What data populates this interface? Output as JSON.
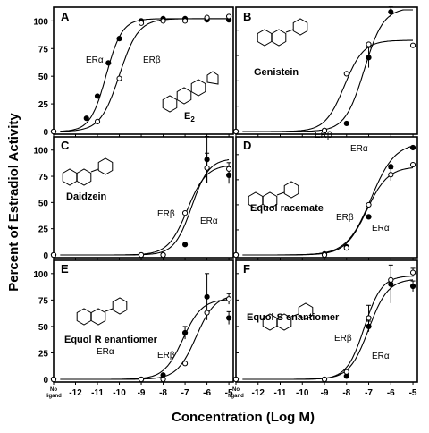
{
  "y_axis_label": "Percent of Estradiol Activity",
  "x_axis_label": "Concentration (Log M)",
  "no_ligand_label": [
    "No",
    "ligand"
  ],
  "x_tick_labels": [
    "-12",
    "-11",
    "-10",
    "-9",
    "-8",
    "-7",
    "-6",
    "-5"
  ],
  "colors": {
    "axis": "#000000",
    "er_alpha": "#000000",
    "er_beta": "#000000"
  },
  "chart_data": [
    {
      "type": "line",
      "panel": "A",
      "label": "E2",
      "xlim": [
        -12,
        -5
      ],
      "ylim": [
        0,
        110
      ],
      "yticks": [
        0,
        25,
        50,
        75,
        100
      ],
      "x_ticks": [
        -12,
        -11,
        -10,
        -9,
        -8,
        -7,
        -6,
        -5
      ],
      "ligand_image": "estradiol-structure",
      "series": [
        {
          "name": "ERα",
          "marker": "filled-circle",
          "x": [
            "no-ligand",
            -11.5,
            -11,
            -10.5,
            -10,
            -9,
            -8,
            -7,
            -6,
            -5
          ],
          "y": [
            0,
            12,
            32,
            62,
            84,
            100,
            102,
            102,
            101,
            101
          ],
          "ec50": -10.6,
          "top": 102,
          "hill": 1.2
        },
        {
          "name": "ERβ",
          "marker": "open-circle",
          "x": [
            "no-ligand",
            -11,
            -10,
            -9,
            -8,
            -7,
            -6,
            -5
          ],
          "y": [
            0,
            9,
            48,
            98,
            100,
            100,
            103,
            104
          ],
          "ec50": -10.0,
          "top": 102,
          "hill": 1.0
        }
      ]
    },
    {
      "type": "line",
      "panel": "B",
      "label": "Genistein",
      "xlim": [
        -12,
        -5
      ],
      "ylim": [
        0,
        120
      ],
      "yticks": [
        0,
        25,
        50,
        75,
        100
      ],
      "x_ticks": [
        -12,
        -11,
        -10,
        -9,
        -8,
        -7,
        -6,
        -5
      ],
      "ligand_image": "genistein-structure",
      "series": [
        {
          "name": "ERα",
          "marker": "filled-circle",
          "x": [
            "no-ligand",
            -9,
            -8,
            -7,
            -6
          ],
          "y": [
            0,
            1,
            8,
            73,
            118
          ],
          "error": [
            0,
            0,
            0,
            10,
            5
          ],
          "ec50": -7.2,
          "top": 122,
          "hill": 1.0
        },
        {
          "name": "ERβ",
          "marker": "open-circle",
          "x": [
            "no-ligand",
            -9,
            -8,
            -7,
            -5
          ],
          "y": [
            0,
            1,
            57,
            86,
            85
          ],
          "ec50": -8.1,
          "top": 90,
          "hill": 1.0
        }
      ]
    },
    {
      "type": "line",
      "panel": "C",
      "label": "Daidzein",
      "xlim": [
        -12,
        -5
      ],
      "ylim": [
        0,
        110
      ],
      "yticks": [
        0,
        25,
        50,
        75,
        100
      ],
      "x_ticks": [
        -12,
        -11,
        -10,
        -9,
        -8,
        -7,
        -6,
        -5
      ],
      "ligand_image": "daidzein-structure",
      "series": [
        {
          "name": "ERα",
          "marker": "filled-circle",
          "x": [
            "no-ligand",
            -9,
            -8,
            -7,
            -6,
            -5
          ],
          "y": [
            0,
            0,
            0,
            10,
            91,
            76
          ],
          "error": [
            0,
            0,
            0,
            0,
            22,
            8
          ],
          "ec50": -6.7,
          "top": 92,
          "hill": 1.1
        },
        {
          "name": "ERβ",
          "marker": "open-circle",
          "x": [
            "no-ligand",
            -9,
            -8,
            -7,
            -6,
            -5
          ],
          "y": [
            0,
            0,
            0,
            40,
            83,
            82
          ],
          "error": [
            0,
            0,
            0,
            0,
            14,
            6
          ],
          "ec50": -6.9,
          "top": 86,
          "hill": 1.0
        }
      ]
    },
    {
      "type": "line",
      "panel": "D",
      "label": "Equol racemate",
      "xlim": [
        -12,
        -5
      ],
      "ylim": [
        0,
        115
      ],
      "yticks": [
        0,
        25,
        50,
        75,
        100
      ],
      "x_ticks": [
        -12,
        -11,
        -10,
        -9,
        -8,
        -7,
        -6,
        -5
      ],
      "ligand_image": "equol-structure",
      "series": [
        {
          "name": "ERα",
          "marker": "filled-circle",
          "x": [
            "no-ligand",
            -9,
            -8,
            -7,
            -6,
            -5
          ],
          "y": [
            0,
            1,
            8,
            38,
            88,
            107
          ],
          "ec50": -6.9,
          "top": 112,
          "hill": 0.8
        },
        {
          "name": "ERβ",
          "marker": "open-circle",
          "x": [
            "no-ligand",
            -9,
            -8,
            -7,
            -6,
            -5
          ],
          "y": [
            0,
            0,
            7,
            50,
            80,
            90
          ],
          "error": [
            0,
            0,
            0,
            0,
            6,
            0
          ],
          "ec50": -7.1,
          "top": 88,
          "hill": 0.9
        }
      ]
    },
    {
      "type": "line",
      "panel": "E",
      "label": "Equol R enantiomer",
      "xlim": [
        -12,
        -5
      ],
      "ylim": [
        0,
        110
      ],
      "yticks": [
        0,
        25,
        50,
        75,
        100
      ],
      "x_ticks": [
        -12,
        -11,
        -10,
        -9,
        -8,
        -7,
        -6,
        -5
      ],
      "ligand_image": "equol-r-structure",
      "series": [
        {
          "name": "ERα",
          "marker": "filled-circle",
          "x": [
            "no-ligand",
            -9,
            -8,
            -7,
            -6,
            -5
          ],
          "y": [
            0,
            0,
            4,
            44,
            78,
            58
          ],
          "error": [
            0,
            0,
            0,
            6,
            22,
            6
          ],
          "ec50": -7.1,
          "top": 76,
          "hill": 1.0
        },
        {
          "name": "ERβ",
          "marker": "open-circle",
          "x": [
            "no-ligand",
            -9,
            -8,
            -7,
            -6,
            -5
          ],
          "y": [
            0,
            0,
            0,
            15,
            63,
            76
          ],
          "error": [
            0,
            0,
            0,
            0,
            0,
            5
          ],
          "ec50": -6.5,
          "top": 80,
          "hill": 1.0
        }
      ]
    },
    {
      "type": "line",
      "panel": "F",
      "label": "Equol S enantiomer",
      "xlim": [
        -12,
        -5
      ],
      "ylim": [
        0,
        110
      ],
      "yticks": [
        0,
        25,
        50,
        75,
        100
      ],
      "x_ticks": [
        -12,
        -11,
        -10,
        -9,
        -8,
        -7,
        -6,
        -5
      ],
      "ligand_image": "equol-s-structure",
      "series": [
        {
          "name": "ERα",
          "marker": "filled-circle",
          "x": [
            "no-ligand",
            -9,
            -8,
            -7,
            -6,
            -5
          ],
          "y": [
            0,
            0,
            3,
            50,
            90,
            88
          ],
          "error": [
            0,
            0,
            0,
            5,
            18,
            5
          ],
          "ec50": -7.0,
          "top": 95,
          "hill": 1.0
        },
        {
          "name": "ERβ",
          "marker": "open-circle",
          "x": [
            "no-ligand",
            -9,
            -8,
            -7,
            -6,
            -5
          ],
          "y": [
            0,
            0,
            7,
            58,
            94,
            101
          ],
          "error": [
            0,
            0,
            0,
            12,
            0,
            4
          ],
          "ec50": -7.2,
          "top": 98,
          "hill": 1.1
        }
      ]
    }
  ]
}
